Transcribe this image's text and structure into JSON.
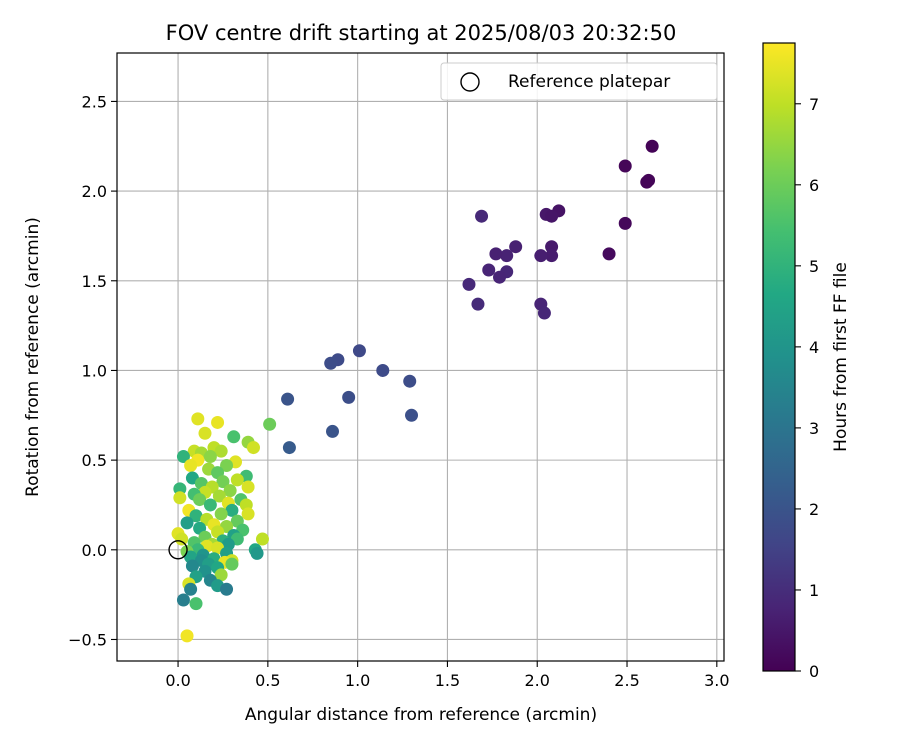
{
  "chart_data": {
    "type": "scatter",
    "title": "FOV centre drift starting at 2025/08/03 20:32:50",
    "xlabel": "Angular distance from reference (arcmin)",
    "ylabel": "Rotation from reference (arcmin)",
    "xlim": [
      -0.34,
      3.04
    ],
    "ylim": [
      -0.62,
      2.77
    ],
    "xticks": [
      0.0,
      0.5,
      1.0,
      1.5,
      2.0,
      2.5,
      3.0
    ],
    "xtick_labels": [
      "0.0",
      "0.5",
      "1.0",
      "1.5",
      "2.0",
      "2.5",
      "3.0"
    ],
    "yticks": [
      -0.5,
      0.0,
      0.5,
      1.0,
      1.5,
      2.0,
      2.5
    ],
    "ytick_labels": [
      "−0.5",
      "0.0",
      "0.5",
      "1.0",
      "1.5",
      "2.0",
      "2.5"
    ],
    "grid": true,
    "legend": {
      "position": "top-right",
      "entries": [
        {
          "label": "Reference platepar",
          "marker": "open-circle"
        }
      ]
    },
    "reference_point": {
      "x": 0.0,
      "y": 0.0
    },
    "colorbar": {
      "label": "Hours from first FF file",
      "colormap": "viridis",
      "range": [
        0,
        7.75
      ],
      "ticks": [
        0,
        1,
        2,
        3,
        4,
        5,
        6,
        7
      ],
      "tick_labels": [
        "0",
        "1",
        "2",
        "3",
        "4",
        "5",
        "6",
        "7"
      ]
    },
    "points": [
      {
        "x": 2.64,
        "y": 2.25,
        "c": 0.05
      },
      {
        "x": 2.49,
        "y": 2.14,
        "c": 0.1
      },
      {
        "x": 2.62,
        "y": 2.06,
        "c": 0.1
      },
      {
        "x": 2.61,
        "y": 2.05,
        "c": 0.08
      },
      {
        "x": 2.49,
        "y": 1.82,
        "c": 0.15
      },
      {
        "x": 2.4,
        "y": 1.65,
        "c": 0.2
      },
      {
        "x": 2.12,
        "y": 1.89,
        "c": 0.4
      },
      {
        "x": 2.05,
        "y": 1.87,
        "c": 0.5
      },
      {
        "x": 2.08,
        "y": 1.86,
        "c": 0.45
      },
      {
        "x": 1.69,
        "y": 1.86,
        "c": 0.9
      },
      {
        "x": 2.08,
        "y": 1.69,
        "c": 0.55
      },
      {
        "x": 2.08,
        "y": 1.64,
        "c": 0.6
      },
      {
        "x": 2.02,
        "y": 1.64,
        "c": 0.65
      },
      {
        "x": 1.88,
        "y": 1.69,
        "c": 0.7
      },
      {
        "x": 1.83,
        "y": 1.64,
        "c": 0.75
      },
      {
        "x": 1.77,
        "y": 1.65,
        "c": 0.7
      },
      {
        "x": 1.73,
        "y": 1.56,
        "c": 0.8
      },
      {
        "x": 1.83,
        "y": 1.55,
        "c": 0.85
      },
      {
        "x": 1.79,
        "y": 1.52,
        "c": 0.8
      },
      {
        "x": 1.62,
        "y": 1.48,
        "c": 0.9
      },
      {
        "x": 1.67,
        "y": 1.37,
        "c": 0.95
      },
      {
        "x": 2.02,
        "y": 1.37,
        "c": 0.8
      },
      {
        "x": 2.04,
        "y": 1.32,
        "c": 0.85
      },
      {
        "x": 1.01,
        "y": 1.11,
        "c": 1.7
      },
      {
        "x": 0.89,
        "y": 1.06,
        "c": 1.75
      },
      {
        "x": 0.85,
        "y": 1.04,
        "c": 1.8
      },
      {
        "x": 1.14,
        "y": 1.0,
        "c": 1.75
      },
      {
        "x": 1.29,
        "y": 0.94,
        "c": 1.8
      },
      {
        "x": 0.95,
        "y": 0.85,
        "c": 1.85
      },
      {
        "x": 0.61,
        "y": 0.84,
        "c": 2.0
      },
      {
        "x": 1.3,
        "y": 0.75,
        "c": 1.9
      },
      {
        "x": 0.86,
        "y": 0.66,
        "c": 2.0
      },
      {
        "x": 0.62,
        "y": 0.57,
        "c": 2.2
      },
      {
        "x": 0.11,
        "y": 0.73,
        "c": 7.4
      },
      {
        "x": 0.22,
        "y": 0.71,
        "c": 7.5
      },
      {
        "x": 0.51,
        "y": 0.7,
        "c": 6.0
      },
      {
        "x": 0.15,
        "y": 0.65,
        "c": 7.3
      },
      {
        "x": 0.31,
        "y": 0.63,
        "c": 5.5
      },
      {
        "x": 0.39,
        "y": 0.6,
        "c": 6.5
      },
      {
        "x": 0.42,
        "y": 0.57,
        "c": 7.2
      },
      {
        "x": 0.2,
        "y": 0.57,
        "c": 7.0
      },
      {
        "x": 0.24,
        "y": 0.55,
        "c": 6.8
      },
      {
        "x": 0.09,
        "y": 0.55,
        "c": 7.1
      },
      {
        "x": 0.13,
        "y": 0.54,
        "c": 6.7
      },
      {
        "x": 0.18,
        "y": 0.52,
        "c": 6.4
      },
      {
        "x": 0.03,
        "y": 0.52,
        "c": 5.0
      },
      {
        "x": 0.11,
        "y": 0.5,
        "c": 7.6
      },
      {
        "x": 0.32,
        "y": 0.49,
        "c": 7.4
      },
      {
        "x": 0.27,
        "y": 0.47,
        "c": 6.2
      },
      {
        "x": 0.07,
        "y": 0.47,
        "c": 7.5
      },
      {
        "x": 0.17,
        "y": 0.45,
        "c": 6.6
      },
      {
        "x": 0.22,
        "y": 0.43,
        "c": 5.8
      },
      {
        "x": 0.38,
        "y": 0.41,
        "c": 5.3
      },
      {
        "x": 0.08,
        "y": 0.4,
        "c": 4.6
      },
      {
        "x": 0.33,
        "y": 0.39,
        "c": 7.0
      },
      {
        "x": 0.25,
        "y": 0.38,
        "c": 6.1
      },
      {
        "x": 0.13,
        "y": 0.37,
        "c": 5.7
      },
      {
        "x": 0.39,
        "y": 0.35,
        "c": 7.3
      },
      {
        "x": 0.19,
        "y": 0.35,
        "c": 6.9
      },
      {
        "x": 0.01,
        "y": 0.34,
        "c": 5.1
      },
      {
        "x": 0.29,
        "y": 0.33,
        "c": 6.4
      },
      {
        "x": 0.15,
        "y": 0.32,
        "c": 7.1
      },
      {
        "x": 0.09,
        "y": 0.31,
        "c": 5.4
      },
      {
        "x": 0.23,
        "y": 0.3,
        "c": 6.7
      },
      {
        "x": 0.01,
        "y": 0.29,
        "c": 7.2
      },
      {
        "x": 0.35,
        "y": 0.28,
        "c": 5.6
      },
      {
        "x": 0.12,
        "y": 0.28,
        "c": 6.0
      },
      {
        "x": 0.28,
        "y": 0.26,
        "c": 7.4
      },
      {
        "x": 0.38,
        "y": 0.25,
        "c": 7.0
      },
      {
        "x": 0.18,
        "y": 0.25,
        "c": 5.2
      },
      {
        "x": 0.06,
        "y": 0.22,
        "c": 7.6
      },
      {
        "x": 0.3,
        "y": 0.22,
        "c": 4.8
      },
      {
        "x": 0.24,
        "y": 0.2,
        "c": 6.3
      },
      {
        "x": 0.39,
        "y": 0.2,
        "c": 7.3
      },
      {
        "x": 0.1,
        "y": 0.19,
        "c": 5.0
      },
      {
        "x": 0.16,
        "y": 0.17,
        "c": 6.9
      },
      {
        "x": 0.33,
        "y": 0.16,
        "c": 5.9
      },
      {
        "x": 0.05,
        "y": 0.15,
        "c": 4.3
      },
      {
        "x": 0.2,
        "y": 0.14,
        "c": 7.5
      },
      {
        "x": 0.27,
        "y": 0.13,
        "c": 6.5
      },
      {
        "x": 0.12,
        "y": 0.12,
        "c": 4.7
      },
      {
        "x": 0.36,
        "y": 0.11,
        "c": 5.5
      },
      {
        "x": 0.22,
        "y": 0.1,
        "c": 7.1
      },
      {
        "x": 0.0,
        "y": 0.09,
        "c": 7.4
      },
      {
        "x": 0.31,
        "y": 0.08,
        "c": 4.4
      },
      {
        "x": 0.15,
        "y": 0.07,
        "c": 6.0
      },
      {
        "x": 0.33,
        "y": 0.06,
        "c": 5.3
      },
      {
        "x": 0.47,
        "y": 0.06,
        "c": 7.0
      },
      {
        "x": 0.02,
        "y": 0.06,
        "c": 7.2
      },
      {
        "x": 0.25,
        "y": 0.05,
        "c": 4.9
      },
      {
        "x": 0.09,
        "y": 0.04,
        "c": 5.6
      },
      {
        "x": 0.19,
        "y": 0.03,
        "c": 6.7
      },
      {
        "x": 0.28,
        "y": 0.03,
        "c": 4.2
      },
      {
        "x": 0.16,
        "y": 0.02,
        "c": 7.4
      },
      {
        "x": 0.22,
        "y": 0.01,
        "c": 7.3
      },
      {
        "x": 0.11,
        "y": 0.0,
        "c": 5.2
      },
      {
        "x": 0.43,
        "y": 0.0,
        "c": 4.6
      },
      {
        "x": 0.05,
        "y": -0.01,
        "c": 6.2
      },
      {
        "x": 0.44,
        "y": -0.02,
        "c": 4.1
      },
      {
        "x": 0.27,
        "y": -0.02,
        "c": 4.3
      },
      {
        "x": 0.14,
        "y": -0.03,
        "c": 4.0
      },
      {
        "x": 0.07,
        "y": -0.04,
        "c": 4.5
      },
      {
        "x": 0.2,
        "y": -0.05,
        "c": 4.8
      },
      {
        "x": 0.3,
        "y": -0.06,
        "c": 7.2
      },
      {
        "x": 0.13,
        "y": -0.06,
        "c": 3.8
      },
      {
        "x": 0.26,
        "y": -0.07,
        "c": 7.5
      },
      {
        "x": 0.17,
        "y": -0.08,
        "c": 4.3
      },
      {
        "x": 0.3,
        "y": -0.08,
        "c": 5.9
      },
      {
        "x": 0.08,
        "y": -0.09,
        "c": 3.6
      },
      {
        "x": 0.22,
        "y": -0.1,
        "c": 4.6
      },
      {
        "x": 0.15,
        "y": -0.12,
        "c": 3.9
      },
      {
        "x": 0.24,
        "y": -0.14,
        "c": 6.6
      },
      {
        "x": 0.1,
        "y": -0.15,
        "c": 4.4
      },
      {
        "x": 0.18,
        "y": -0.17,
        "c": 3.5
      },
      {
        "x": 0.06,
        "y": -0.19,
        "c": 7.3
      },
      {
        "x": 0.22,
        "y": -0.2,
        "c": 4.2
      },
      {
        "x": 0.07,
        "y": -0.22,
        "c": 3.4
      },
      {
        "x": 0.27,
        "y": -0.22,
        "c": 3.2
      },
      {
        "x": 0.03,
        "y": -0.28,
        "c": 3.3
      },
      {
        "x": 0.1,
        "y": -0.3,
        "c": 5.5
      },
      {
        "x": 0.05,
        "y": -0.48,
        "c": 7.6
      }
    ]
  }
}
